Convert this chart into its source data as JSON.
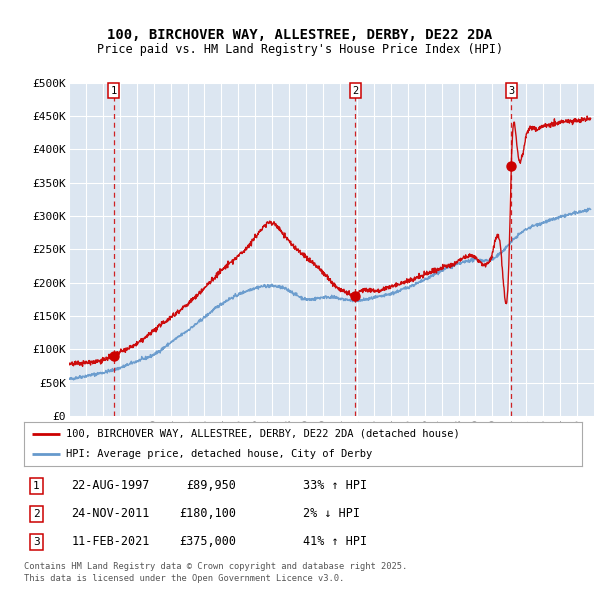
{
  "title": "100, BIRCHOVER WAY, ALLESTREE, DERBY, DE22 2DA",
  "subtitle": "Price paid vs. HM Land Registry's House Price Index (HPI)",
  "ylim": [
    0,
    500000
  ],
  "yticks": [
    0,
    50000,
    100000,
    150000,
    200000,
    250000,
    300000,
    350000,
    400000,
    450000,
    500000
  ],
  "ytick_labels": [
    "£0",
    "£50K",
    "£100K",
    "£150K",
    "£200K",
    "£250K",
    "£300K",
    "£350K",
    "£400K",
    "£450K",
    "£500K"
  ],
  "xlim": [
    1995,
    2026
  ],
  "xtick_years": [
    1995,
    1996,
    1997,
    1998,
    1999,
    2000,
    2001,
    2002,
    2003,
    2004,
    2005,
    2006,
    2007,
    2008,
    2009,
    2010,
    2011,
    2012,
    2013,
    2014,
    2015,
    2016,
    2017,
    2018,
    2019,
    2020,
    2021,
    2022,
    2023,
    2024,
    2025
  ],
  "sales": [
    {
      "date_num": 1997.643,
      "price": 89950,
      "label": "1",
      "text": "22-AUG-1997",
      "price_str": "£89,950",
      "pct": "33%",
      "dir": "↑"
    },
    {
      "date_num": 2011.899,
      "price": 180100,
      "label": "2",
      "text": "24-NOV-2011",
      "price_str": "£180,100",
      "pct": "2%",
      "dir": "↓"
    },
    {
      "date_num": 2021.115,
      "price": 375000,
      "label": "3",
      "text": "11-FEB-2021",
      "price_str": "£375,000",
      "pct": "41%",
      "dir": "↑"
    }
  ],
  "legend_property": "100, BIRCHOVER WAY, ALLESTREE, DERBY, DE22 2DA (detached house)",
  "legend_hpi": "HPI: Average price, detached house, City of Derby",
  "footer1": "Contains HM Land Registry data © Crown copyright and database right 2025.",
  "footer2": "This data is licensed under the Open Government Licence v3.0.",
  "property_color": "#cc0000",
  "hpi_color": "#6699cc",
  "plot_bg_color": "#dce6f1",
  "sale_box_color": "#cc0000",
  "hpi_key_x": [
    1995,
    1996,
    1997,
    1998,
    1999,
    2000,
    2001,
    2002,
    2003,
    2004,
    2005,
    2006,
    2007,
    2008,
    2009,
    2010,
    2011,
    2012,
    2013,
    2014,
    2015,
    2016,
    2017,
    2018,
    2019,
    2020,
    2021,
    2022,
    2023,
    2024,
    2025,
    2026
  ],
  "hpi_key_y": [
    55000,
    60000,
    65000,
    72000,
    82000,
    92000,
    110000,
    128000,
    148000,
    168000,
    182000,
    192000,
    195000,
    188000,
    175000,
    178000,
    176000,
    173000,
    177000,
    183000,
    193000,
    204000,
    218000,
    228000,
    234000,
    235000,
    258000,
    280000,
    290000,
    298000,
    305000,
    310000
  ],
  "prop_key_x": [
    1995,
    1996,
    1997,
    1997.643,
    1998,
    1999,
    2000,
    2001,
    2002,
    2003,
    2004,
    2005,
    2006,
    2007,
    2007.5,
    2008,
    2009,
    2010,
    2011,
    2011.5,
    2011.899,
    2012,
    2013,
    2014,
    2015,
    2016,
    2017,
    2018,
    2019,
    2020,
    2020.5,
    2021,
    2021.115,
    2021.5,
    2022,
    2022.5,
    2023,
    2023.5,
    2024,
    2024.5,
    2025,
    2025.5,
    2026
  ],
  "prop_key_y": [
    78000,
    80000,
    84000,
    89950,
    95000,
    108000,
    128000,
    148000,
    168000,
    192000,
    218000,
    240000,
    268000,
    290000,
    278000,
    262000,
    238000,
    215000,
    190000,
    183000,
    180100,
    183000,
    188000,
    194000,
    202000,
    212000,
    222000,
    232000,
    238000,
    244000,
    248000,
    252000,
    375000,
    395000,
    420000,
    430000,
    435000,
    438000,
    440000,
    442000,
    443000,
    445000,
    447000
  ]
}
